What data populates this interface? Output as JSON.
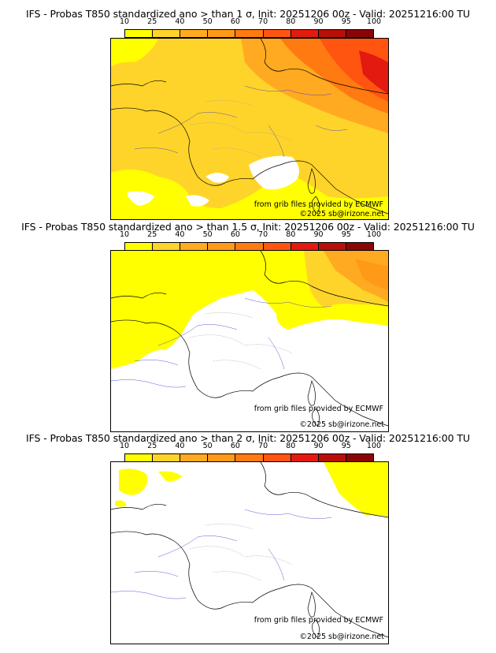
{
  "colorbar": {
    "labels": [
      "10",
      "25",
      "40",
      "50",
      "60",
      "70",
      "80",
      "90",
      "95",
      "100"
    ],
    "colors": [
      "#ffff00",
      "#ffd42a",
      "#ffaa20",
      "#ff9a18",
      "#ff7a10",
      "#ff5510",
      "#e31a10",
      "#b80f0a",
      "#8a0606",
      "#5a0202"
    ]
  },
  "panels": [
    {
      "title": "IFS - Probas T850  standardized ano > than 1 σ, Init: 20251206 00z - Valid: 20251216:00 TU",
      "credit_source": "from grib files provided by ECMWF",
      "credit_copyright": "©2025 sb@irizone.net"
    },
    {
      "title": "IFS - Probas T850  standardized ano > than 1.5 σ, Init: 20251206 00z - Valid: 20251216:00 TU",
      "credit_source": "from grib files provided by ECMWF",
      "credit_copyright": "©2025 sb@irizone.net"
    },
    {
      "title": "IFS - Probas T850  standardized ano > than 2 σ, Init: 20251206 00z - Valid: 20251216:00 TU",
      "credit_source": "from grib files provided by ECMWF",
      "credit_copyright": "©2025 sb@irizone.net"
    }
  ]
}
